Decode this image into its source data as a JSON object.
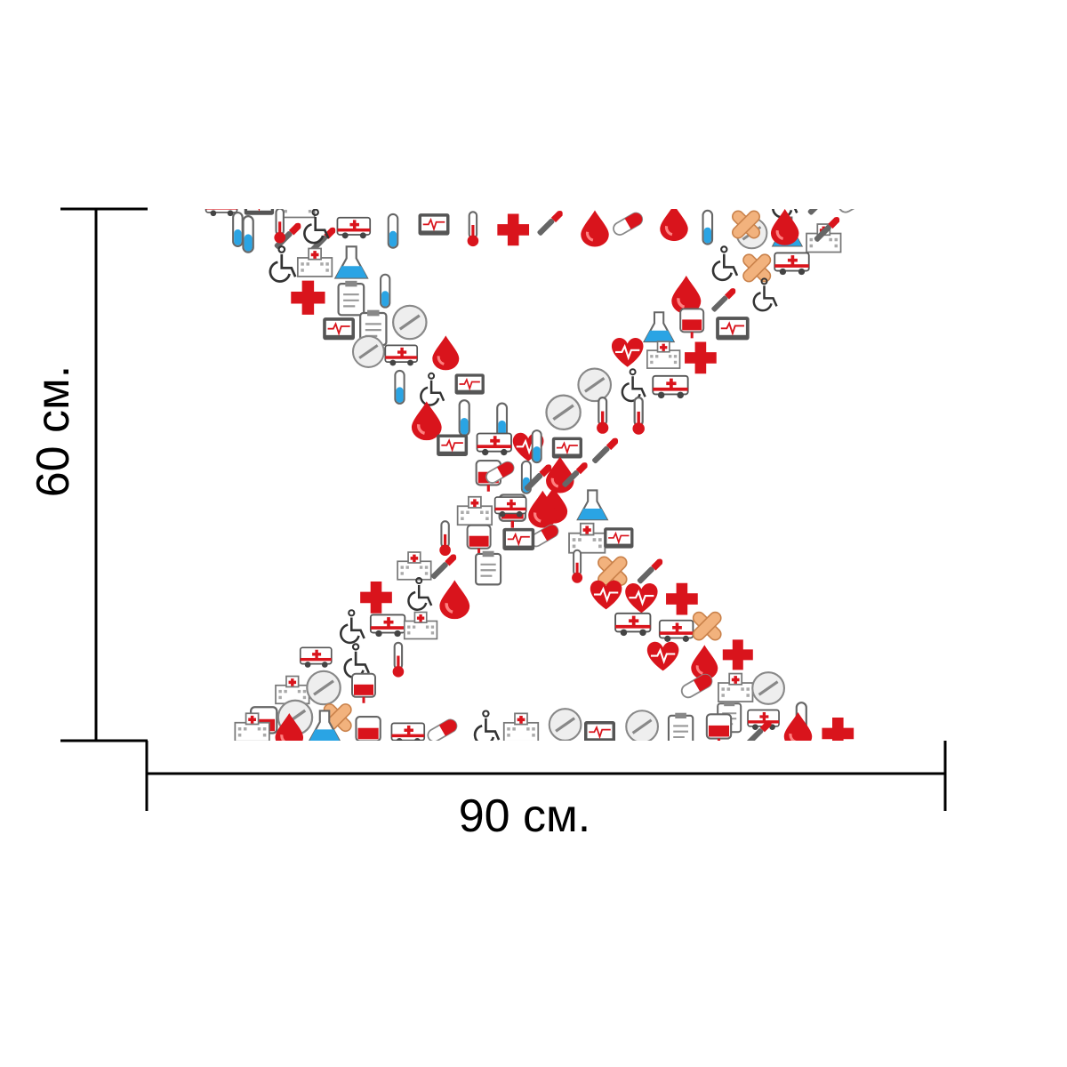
{
  "dimensions": {
    "width_label": "90 см.",
    "height_label": "60 см."
  },
  "artwork": {
    "subject": "dna-helix-of-medical-icons",
    "icons": [
      "blood-drop-icon",
      "medical-cross-icon",
      "heart-pulse-icon",
      "ambulance-icon",
      "pill-capsule-icon",
      "tablet-icon",
      "wheelchair-icon",
      "bandage-icon",
      "flask-icon",
      "test-tube-icon",
      "thermometer-icon",
      "scalpel-icon",
      "blood-bag-icon",
      "clipboard-icon",
      "hospital-icon",
      "monitor-icon"
    ],
    "colors": {
      "red": "#d9141c",
      "dark_red": "#a80d14",
      "blue": "#2aa4e4",
      "gray": "#8c8c8c",
      "bandage": "#f2b27d"
    }
  }
}
